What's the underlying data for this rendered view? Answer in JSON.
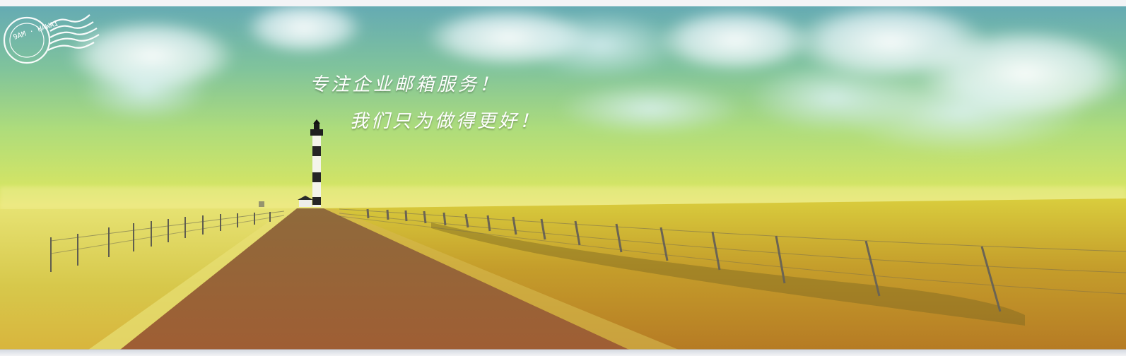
{
  "banner": {
    "line1": "专注企业邮箱服务！",
    "line2": "我们只为做得更好！",
    "stamp_text": "9AM · HAWAI"
  },
  "colors": {
    "sky_top": "#4a9ca6",
    "grass_light": "#d9d04e",
    "road": "#a86b3c",
    "text": "#ffffff"
  },
  "icons": {
    "lighthouse": "lighthouse-icon",
    "stamp": "postmark-icon"
  }
}
